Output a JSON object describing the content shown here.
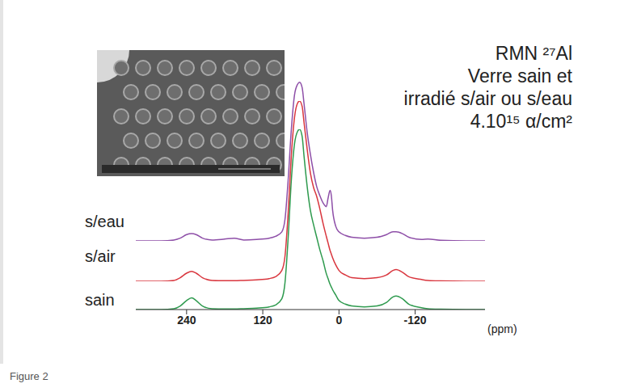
{
  "chart_data": {
    "type": "line",
    "title": [
      "RMN ²⁷Al",
      "Verre sain et",
      "irradié s/air ou s/eau",
      "4.10¹⁵ α/cm²"
    ],
    "x_label": "(ppm)",
    "caption": "Figure 2",
    "x": [
      320,
      280,
      260,
      250,
      240,
      232,
      225,
      215,
      200,
      180,
      165,
      150,
      130,
      110,
      100,
      90,
      85,
      80,
      75,
      70,
      65,
      62,
      58,
      55,
      50,
      45,
      40,
      35,
      30,
      25,
      20,
      17,
      14,
      12,
      10,
      5,
      0,
      -10,
      -20,
      -40,
      -60,
      -75,
      -85,
      -90,
      -100,
      -110,
      -130,
      -140,
      -160,
      -200,
      -230
    ],
    "series": [
      {
        "name": "sain",
        "color": "#2e9a4e",
        "values": [
          0,
          0,
          0.5,
          2,
          5,
          6.5,
          5,
          2,
          0.5,
          0.3,
          0.3,
          0.5,
          0.8,
          1.5,
          2.5,
          6,
          15,
          40,
          72,
          92,
          99,
          100,
          96,
          85,
          68,
          55,
          47,
          40,
          33,
          27,
          20,
          17,
          14,
          12.5,
          11,
          8,
          5,
          3,
          2,
          1.5,
          2,
          4,
          7,
          7.5,
          6,
          3,
          1,
          0.5,
          0.2,
          0,
          0
        ]
      },
      {
        "name": "s/air",
        "color": "#d9363e",
        "values": [
          0,
          0,
          0.5,
          2,
          4.5,
          5.5,
          4.5,
          2,
          0.5,
          0.3,
          0.3,
          0.5,
          0.8,
          1.5,
          2.5,
          6,
          14,
          38,
          70,
          91,
          99,
          100,
          97,
          88,
          73,
          60,
          52,
          47,
          40,
          32,
          25,
          21,
          17,
          15,
          13,
          9,
          6,
          3.5,
          2,
          1.5,
          2,
          3.5,
          6,
          6.5,
          5,
          2.5,
          1,
          0.5,
          0.2,
          0,
          0
        ]
      },
      {
        "name": "s/eau",
        "color": "#8e4fa8",
        "values": [
          0,
          0,
          0.5,
          1.5,
          3.5,
          4,
          3.5,
          1.5,
          0.5,
          1,
          1.5,
          0.5,
          0.8,
          1.5,
          2.5,
          5,
          12,
          34,
          62,
          81,
          87,
          88,
          85,
          76,
          60,
          48,
          38,
          30,
          25,
          21,
          19,
          24,
          28,
          25,
          17,
          8,
          5,
          3,
          2,
          1.5,
          2,
          3.5,
          5,
          5,
          4,
          2,
          0.8,
          1,
          0.3,
          0,
          0
        ]
      }
    ],
    "xlim": [
      320,
      -230
    ],
    "xticks": [
      240,
      120,
      0,
      -120
    ],
    "ylim": [
      0,
      100
    ],
    "tick_labels": "x",
    "grid": false
  }
}
